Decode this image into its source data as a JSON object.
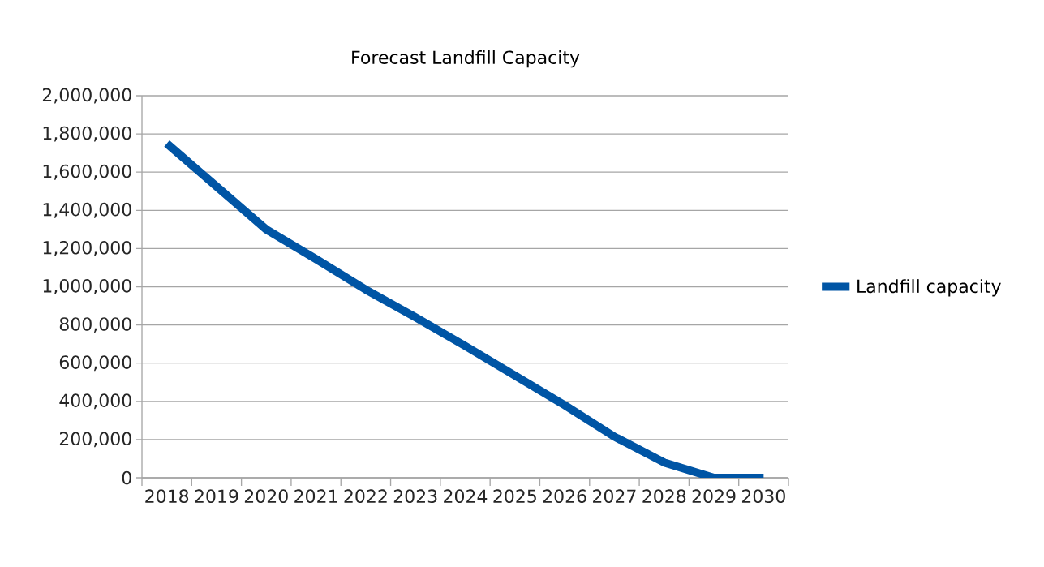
{
  "chart_data": {
    "type": "line",
    "title": "Forecast Landfill Capacity",
    "categories": [
      "2018",
      "2019",
      "2020",
      "2021",
      "2022",
      "2023",
      "2024",
      "2025",
      "2026",
      "2027",
      "2028",
      "2029",
      "2030"
    ],
    "series": [
      {
        "name": "Landfill capacity",
        "color": "#0055a5",
        "values": [
          1750000,
          1525000,
          1300000,
          1145000,
          985000,
          840000,
          690000,
          535000,
          380000,
          215000,
          80000,
          0,
          0
        ]
      }
    ],
    "ylim": [
      0,
      2000000
    ],
    "yticks": [
      {
        "value": 0,
        "label": "0"
      },
      {
        "value": 200000,
        "label": "200,000"
      },
      {
        "value": 400000,
        "label": "400,000"
      },
      {
        "value": 600000,
        "label": "600,000"
      },
      {
        "value": 800000,
        "label": "800,000"
      },
      {
        "value": 1000000,
        "label": "1,000,000"
      },
      {
        "value": 1200000,
        "label": "1,200,000"
      },
      {
        "value": 1400000,
        "label": "1,400,000"
      },
      {
        "value": 1600000,
        "label": "1,600,000"
      },
      {
        "value": 1800000,
        "label": "1,800,000"
      },
      {
        "value": 2000000,
        "label": "2,000,000"
      }
    ],
    "grid": "y",
    "legend": "right",
    "line_style": "solid",
    "marker": "none"
  }
}
